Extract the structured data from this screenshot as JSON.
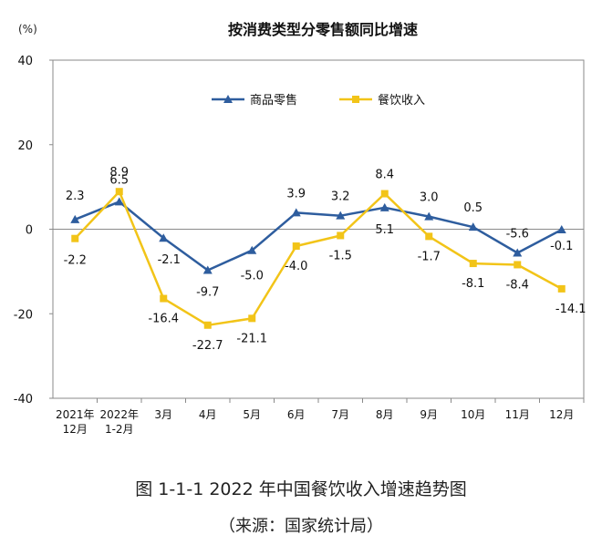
{
  "chart_data": {
    "type": "line",
    "title": "按消费类型分零售额同比增速",
    "ylabel": "(%)",
    "xlabel": "",
    "ylim": [
      -40,
      40
    ],
    "yticks": [
      "40",
      "20",
      "0",
      "-20",
      "-40"
    ],
    "ytick_values": [
      40,
      20,
      0,
      -20,
      -40
    ],
    "grid": false,
    "legend_position": "top",
    "categories": [
      {
        "top": "2021年",
        "bottom": "12月"
      },
      {
        "top": "2022年",
        "bottom": "1-2月"
      },
      {
        "top": "3月",
        "bottom": ""
      },
      {
        "top": "4月",
        "bottom": ""
      },
      {
        "top": "5月",
        "bottom": ""
      },
      {
        "top": "6月",
        "bottom": ""
      },
      {
        "top": "7月",
        "bottom": ""
      },
      {
        "top": "8月",
        "bottom": ""
      },
      {
        "top": "9月",
        "bottom": ""
      },
      {
        "top": "10月",
        "bottom": ""
      },
      {
        "top": "11月",
        "bottom": ""
      },
      {
        "top": "12月",
        "bottom": ""
      }
    ],
    "series": [
      {
        "name": "商品零售",
        "color": "#2e5d9e",
        "marker": "triangle",
        "values": [
          2.3,
          6.5,
          -2.1,
          -9.7,
          -5.0,
          3.9,
          3.2,
          5.1,
          3.0,
          0.5,
          -5.6,
          -0.1
        ],
        "labels": [
          "2.3",
          "6.5",
          "-2.1",
          "-9.7",
          "-5.0",
          "3.9",
          "3.2",
          "5.1",
          "3.0",
          "0.5",
          "-5.6",
          "-0.1"
        ]
      },
      {
        "name": "餐饮收入",
        "color": "#f2c418",
        "marker": "square",
        "values": [
          -2.2,
          8.9,
          -16.4,
          -22.7,
          -21.1,
          -4.0,
          -1.5,
          8.4,
          -1.7,
          -8.1,
          -8.4,
          -14.1
        ],
        "labels": [
          "-2.2",
          "8.9",
          "-16.4",
          "-22.7",
          "-21.1",
          "-4.0",
          "-1.5",
          "8.4",
          "-1.7",
          "-8.1",
          "-8.4",
          "-14.1"
        ]
      }
    ]
  },
  "caption": {
    "title": "图 1-1-1  2022 年中国餐饮收入增速趋势图",
    "source": "（来源：国家统计局）"
  }
}
